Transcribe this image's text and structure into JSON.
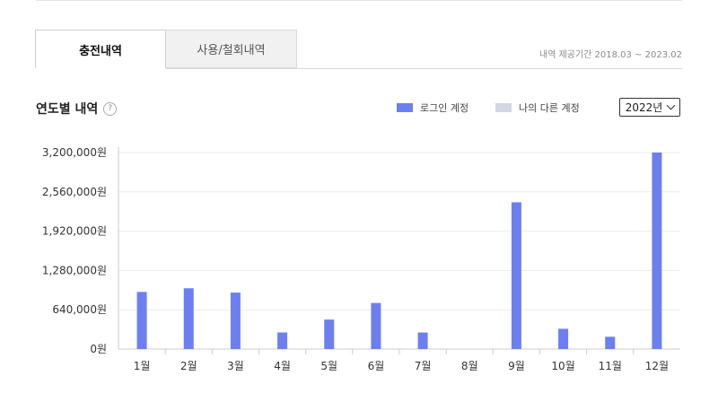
{
  "tabs": [
    {
      "label": "충전내역",
      "active": true
    },
    {
      "label": "사용/철회내역",
      "active": false
    }
  ],
  "period_text": "내역 제공기간 2018.03 ~ 2023.02",
  "section": {
    "title": "연도별 내역",
    "help_icon": "question-circle-icon"
  },
  "legend": [
    {
      "label": "로그인 계정",
      "color": "#6d7ff0"
    },
    {
      "label": "나의 다른 계정",
      "color": "#d3d6e3"
    }
  ],
  "year_select": {
    "value": "2022년"
  },
  "chart_data": {
    "type": "bar",
    "categories": [
      "1월",
      "2월",
      "3월",
      "4월",
      "5월",
      "6월",
      "7월",
      "8월",
      "9월",
      "10월",
      "11월",
      "12월"
    ],
    "series": [
      {
        "name": "로그인 계정",
        "color": "#6d7ff0",
        "values": [
          930000,
          990000,
          920000,
          270000,
          480000,
          750000,
          270000,
          0,
          2390000,
          330000,
          200000,
          3200000
        ]
      }
    ],
    "y_ticks": [
      0,
      640000,
      1280000,
      1920000,
      2560000,
      3200000
    ],
    "y_tick_labels": [
      "0원",
      "640,000원",
      "1,280,000원",
      "1,920,000원",
      "2,560,000원",
      "3,200,000원"
    ],
    "ylim": [
      0,
      3200000
    ],
    "grid": true
  }
}
